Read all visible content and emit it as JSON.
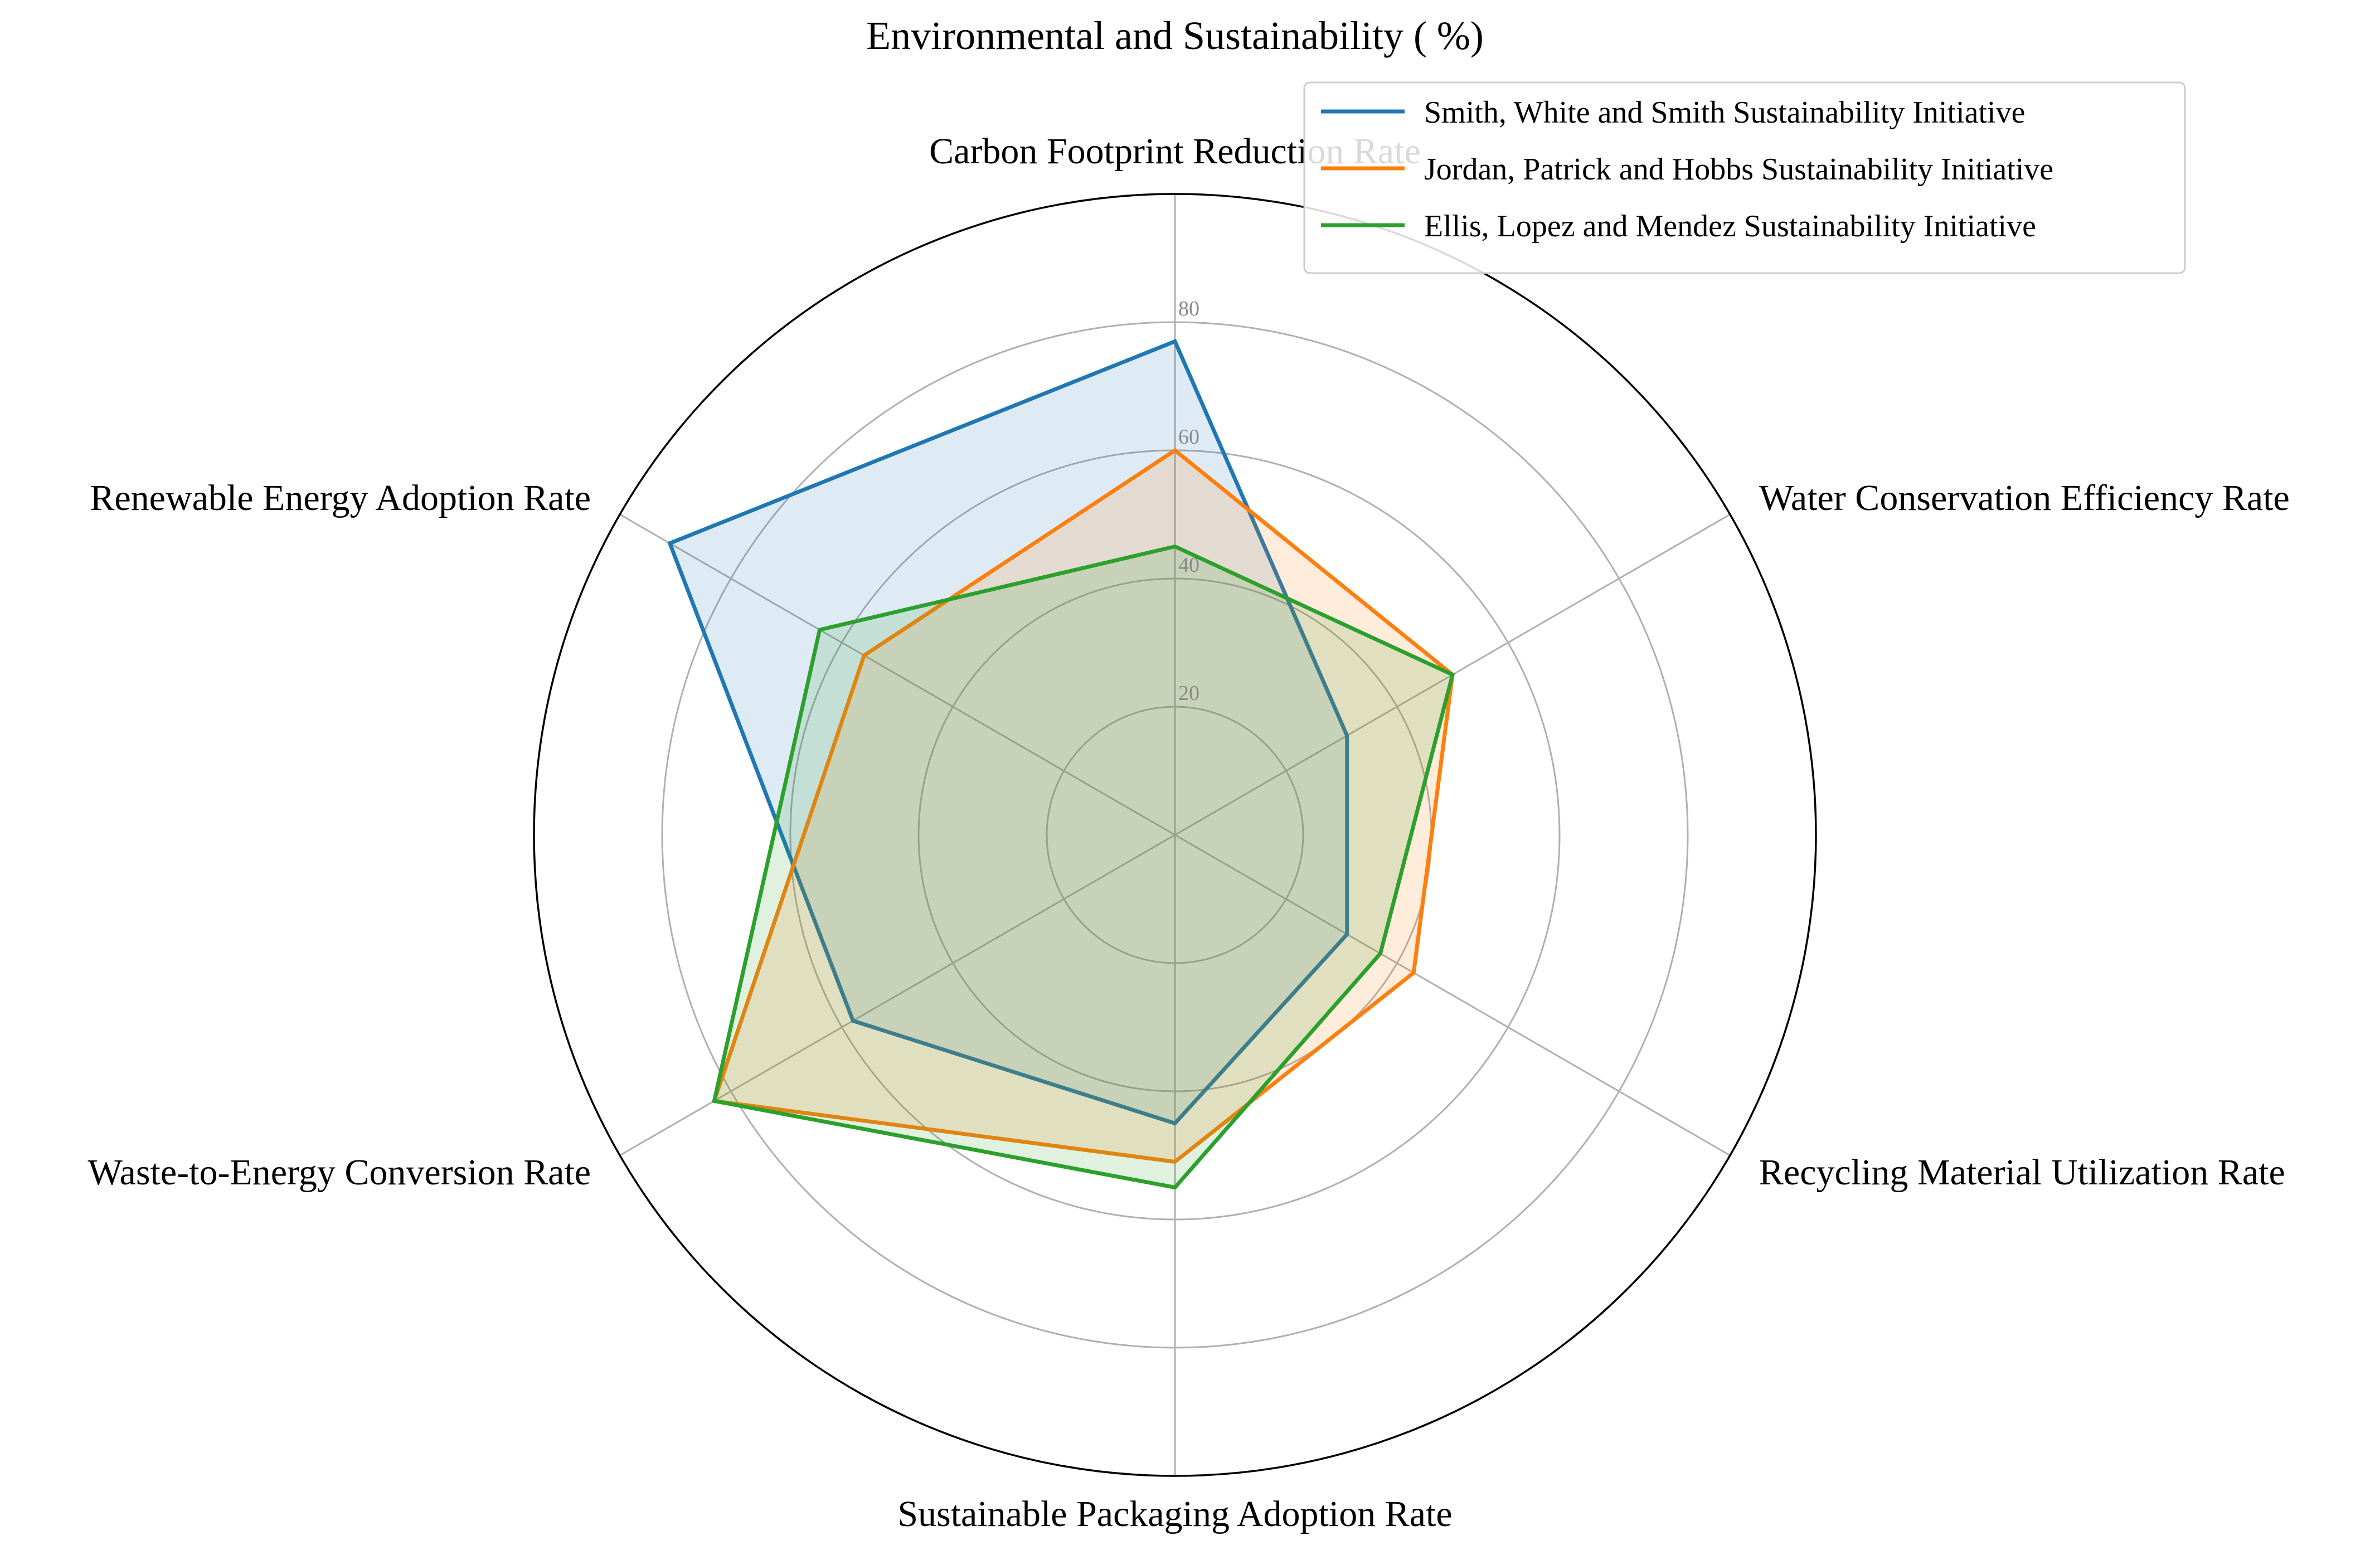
{
  "chart_data": {
    "type": "radar",
    "title": "Environmental and Sustainability ( %)",
    "axes": [
      "Carbon Footprint Reduction Rate",
      "Water Conservation Efficiency Rate",
      "Recycling Material Utilization Rate",
      "Sustainable Packaging Adoption Rate",
      "Waste-to-Energy Conversion Rate",
      "Renewable Energy Adoption Rate"
    ],
    "rlim": [
      0,
      100
    ],
    "rticks": [
      20,
      40,
      60,
      80
    ],
    "grid": true,
    "legend_position": "top-right",
    "series": [
      {
        "name": "Smith, White and Smith Sustainability Initiative",
        "color": "#1f77b4",
        "values": [
          77,
          31,
          31,
          45,
          58,
          91
        ]
      },
      {
        "name": "Jordan, Patrick and Hobbs Sustainability Initiative",
        "color": "#ff7f0e",
        "values": [
          60,
          50,
          43,
          51,
          83,
          56
        ]
      },
      {
        "name": "Ellis, Lopez and Mendez Sustainability Initiative",
        "color": "#2ca02c",
        "values": [
          45,
          50,
          37,
          55,
          83,
          64
        ]
      }
    ]
  }
}
